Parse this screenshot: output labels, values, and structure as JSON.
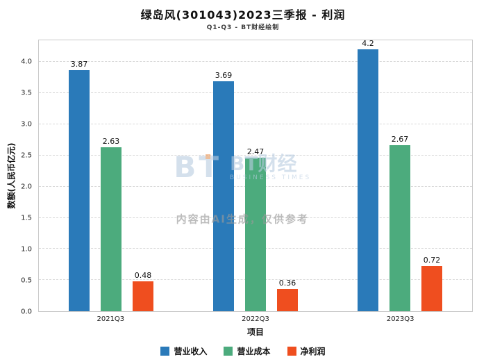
{
  "title": "绿岛风(301043)2023三季报 - 利润",
  "subtitle": "Q1-Q3 - BT财经绘制",
  "watermark": {
    "icon_text": "BT",
    "cn": "BT财经",
    "en": "BUSINESS TIMES",
    "disclaimer": "内容由AI生成，仅供参考"
  },
  "chart_data": {
    "type": "bar",
    "title": "绿岛风(301043)2023三季报 - 利润",
    "subtitle": "Q1-Q3 - BT财经绘制",
    "categories": [
      "2021Q3",
      "2022Q3",
      "2023Q3"
    ],
    "series": [
      {
        "name": "营业收入",
        "color": "#2a7ab9",
        "values": [
          3.87,
          3.69,
          4.2
        ]
      },
      {
        "name": "营业成本",
        "color": "#4cab7d",
        "values": [
          2.63,
          2.47,
          2.67
        ]
      },
      {
        "name": "净利润",
        "color": "#ef4e1f",
        "values": [
          0.48,
          0.36,
          0.72
        ]
      }
    ],
    "xlabel": "项目",
    "ylabel": "数额(人民币亿元)",
    "ylim": [
      0,
      4.35
    ],
    "yticks": [
      0.0,
      0.5,
      1.0,
      1.5,
      2.0,
      2.5,
      3.0,
      3.5,
      4.0
    ],
    "grid": true,
    "gridline_style": "dashed",
    "legend_position": "bottom"
  }
}
